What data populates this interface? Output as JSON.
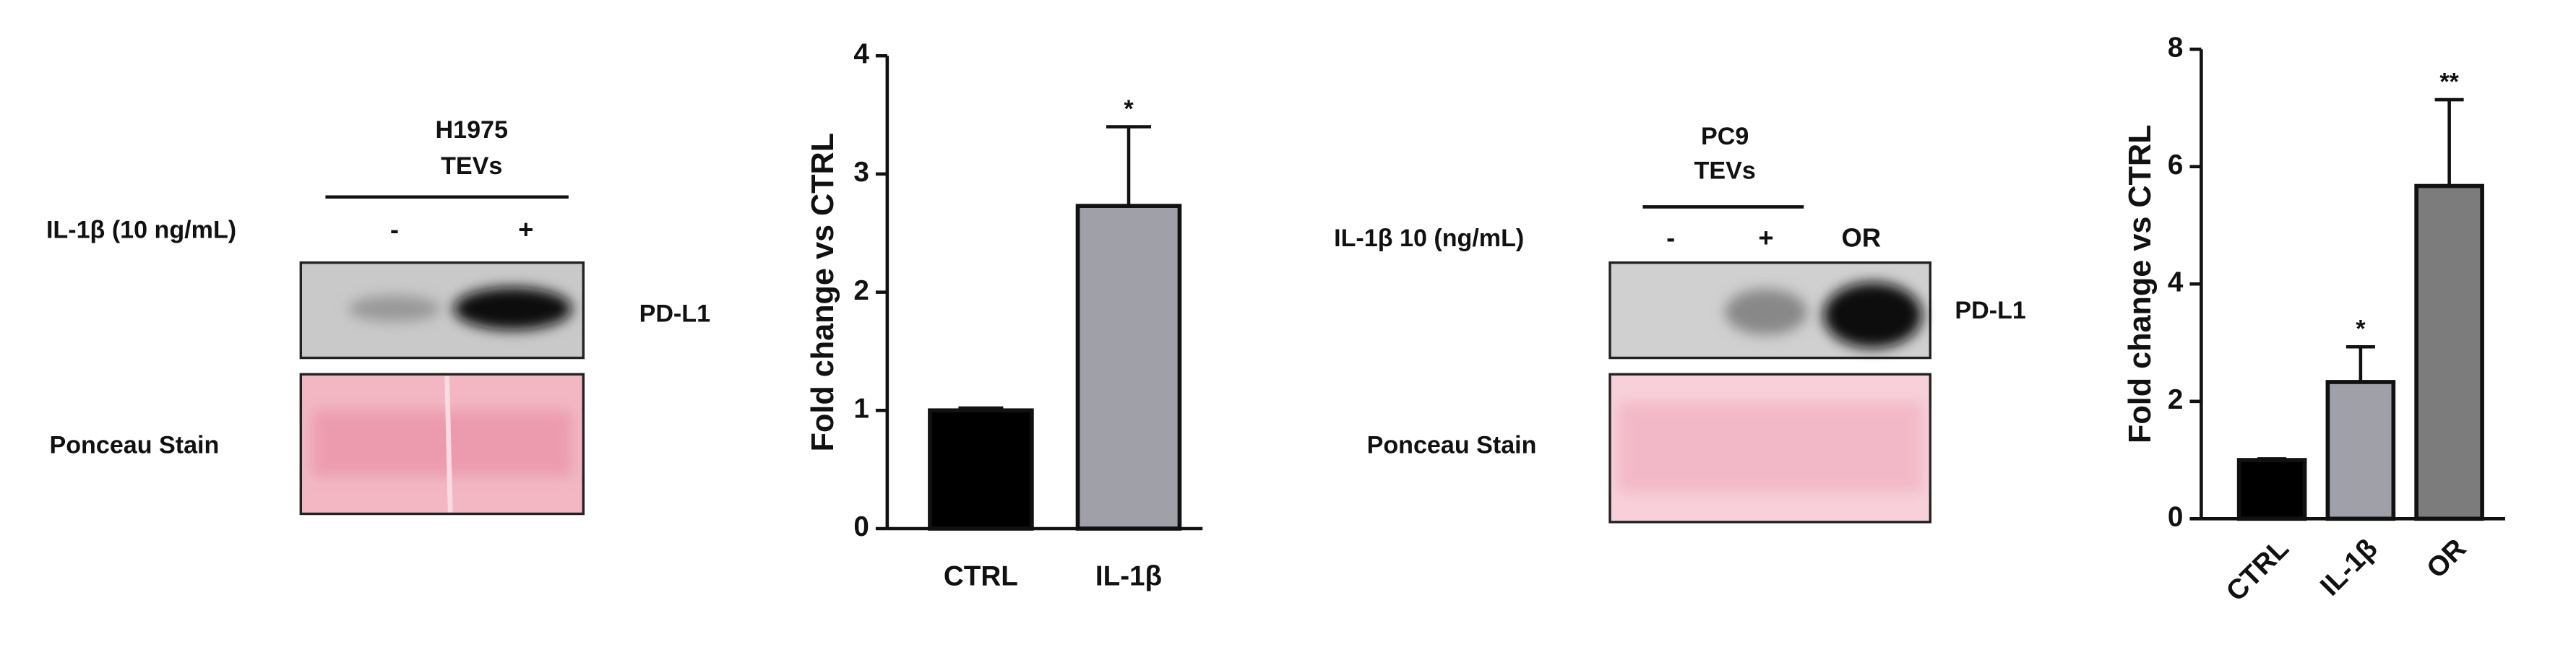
{
  "blots": [
    {
      "cell_line": "H1975",
      "sample": "TEVs",
      "treatment_label": "IL-1β (10 ng/mL)",
      "lanes": [
        "-",
        "+"
      ],
      "band_label": "PD-L1",
      "stain_label": "Ponceau Stain"
    },
    {
      "cell_line": "PC9",
      "sample": "TEVs",
      "treatment_label": "IL-1β 10 (ng/mL)",
      "lanes": [
        "-",
        "+",
        "OR"
      ],
      "band_label": "PD-L1",
      "stain_label": "Ponceau Stain"
    }
  ],
  "chart_data": [
    {
      "type": "bar",
      "y_label": "Fold change vs CTRL",
      "categories": [
        "CTRL",
        "IL-1β"
      ],
      "values": [
        1.0,
        2.73
      ],
      "errors": [
        0.02,
        0.67
      ],
      "colors": [
        "#000000",
        "#a0a0a8"
      ],
      "annotations": [
        null,
        "*"
      ],
      "ylim": [
        0,
        4
      ],
      "yticks": [
        0,
        1,
        2,
        3,
        4
      ]
    },
    {
      "type": "bar",
      "y_label": "Fold change vs CTRL",
      "categories": [
        "CTRL",
        "IL-1β",
        "OR"
      ],
      "values": [
        1.0,
        2.33,
        5.67
      ],
      "errors": [
        0.02,
        0.6,
        1.47
      ],
      "colors": [
        "#000000",
        "#a0a0a8",
        "#7c7c7c"
      ],
      "annotations": [
        null,
        "*",
        "**"
      ],
      "ylim": [
        0,
        8
      ],
      "yticks": [
        0,
        2,
        4,
        6,
        8
      ]
    }
  ]
}
